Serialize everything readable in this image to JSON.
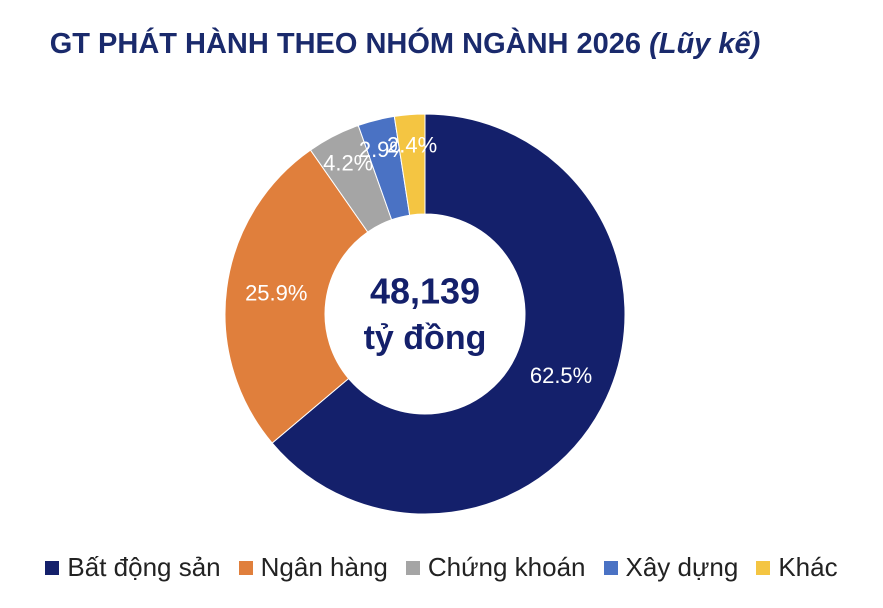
{
  "chart_data": {
    "type": "donut",
    "title": "GT PHÁT HÀNH THEO NHÓM NGÀNH 2026",
    "title_suffix": "(Lũy kế)",
    "center_value": "48,139",
    "center_unit": "tỷ đồng",
    "categories": [
      "Bất động sản",
      "Ngân hàng",
      "Chứng khoán",
      "Xây dựng",
      "Khác"
    ],
    "values": [
      62.5,
      25.9,
      4.2,
      2.9,
      2.4
    ],
    "value_labels": [
      "62.5%",
      "25.9%",
      "4.2%",
      "2.9%",
      "2.4%"
    ],
    "colors": [
      "#14206b",
      "#e07f3c",
      "#a5a5a5",
      "#4a72c4",
      "#f4c542"
    ],
    "legend": "bottom"
  }
}
